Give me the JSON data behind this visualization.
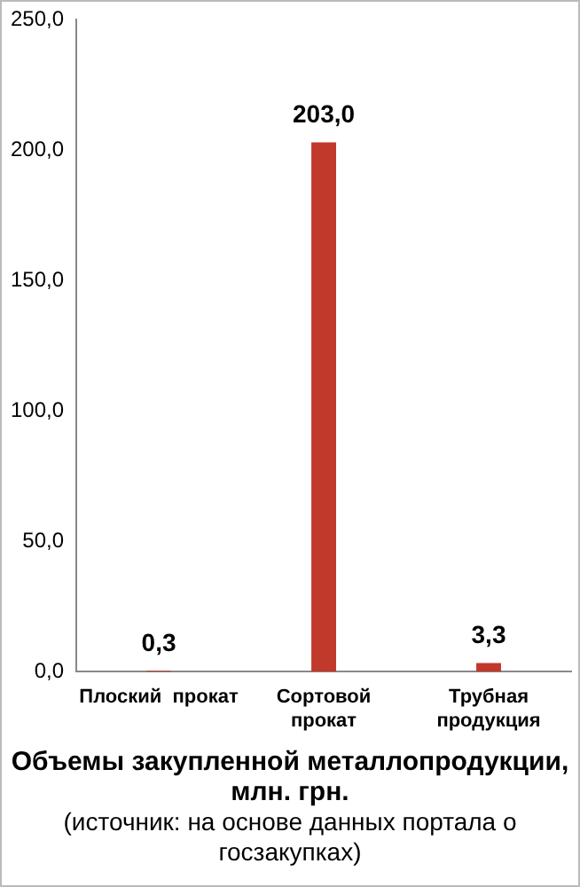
{
  "chart_data": {
    "type": "bar",
    "title": "Объемы закупленной металлопродукции, млн. грн.",
    "annotations": [
      "(источник: на основе данных портала о госзакупках)"
    ],
    "categories": [
      "Плоский  прокат",
      "Сортовой прокат",
      "Трубная продукция"
    ],
    "values": [
      0.3,
      203.0,
      3.3
    ],
    "color": "#c0392b",
    "value_labels": [
      "0,3",
      "203,0",
      "3,3"
    ],
    "ylim": [
      0,
      250
    ],
    "yticks": [
      {
        "value": 0,
        "label": "0,0"
      },
      {
        "value": 50,
        "label": "50,0"
      },
      {
        "value": 100,
        "label": "100,0"
      },
      {
        "value": 150,
        "label": "150,0"
      },
      {
        "value": 200,
        "label": "200,0"
      },
      {
        "value": 250,
        "label": "250,0"
      }
    ],
    "grid": false,
    "legend": false
  }
}
